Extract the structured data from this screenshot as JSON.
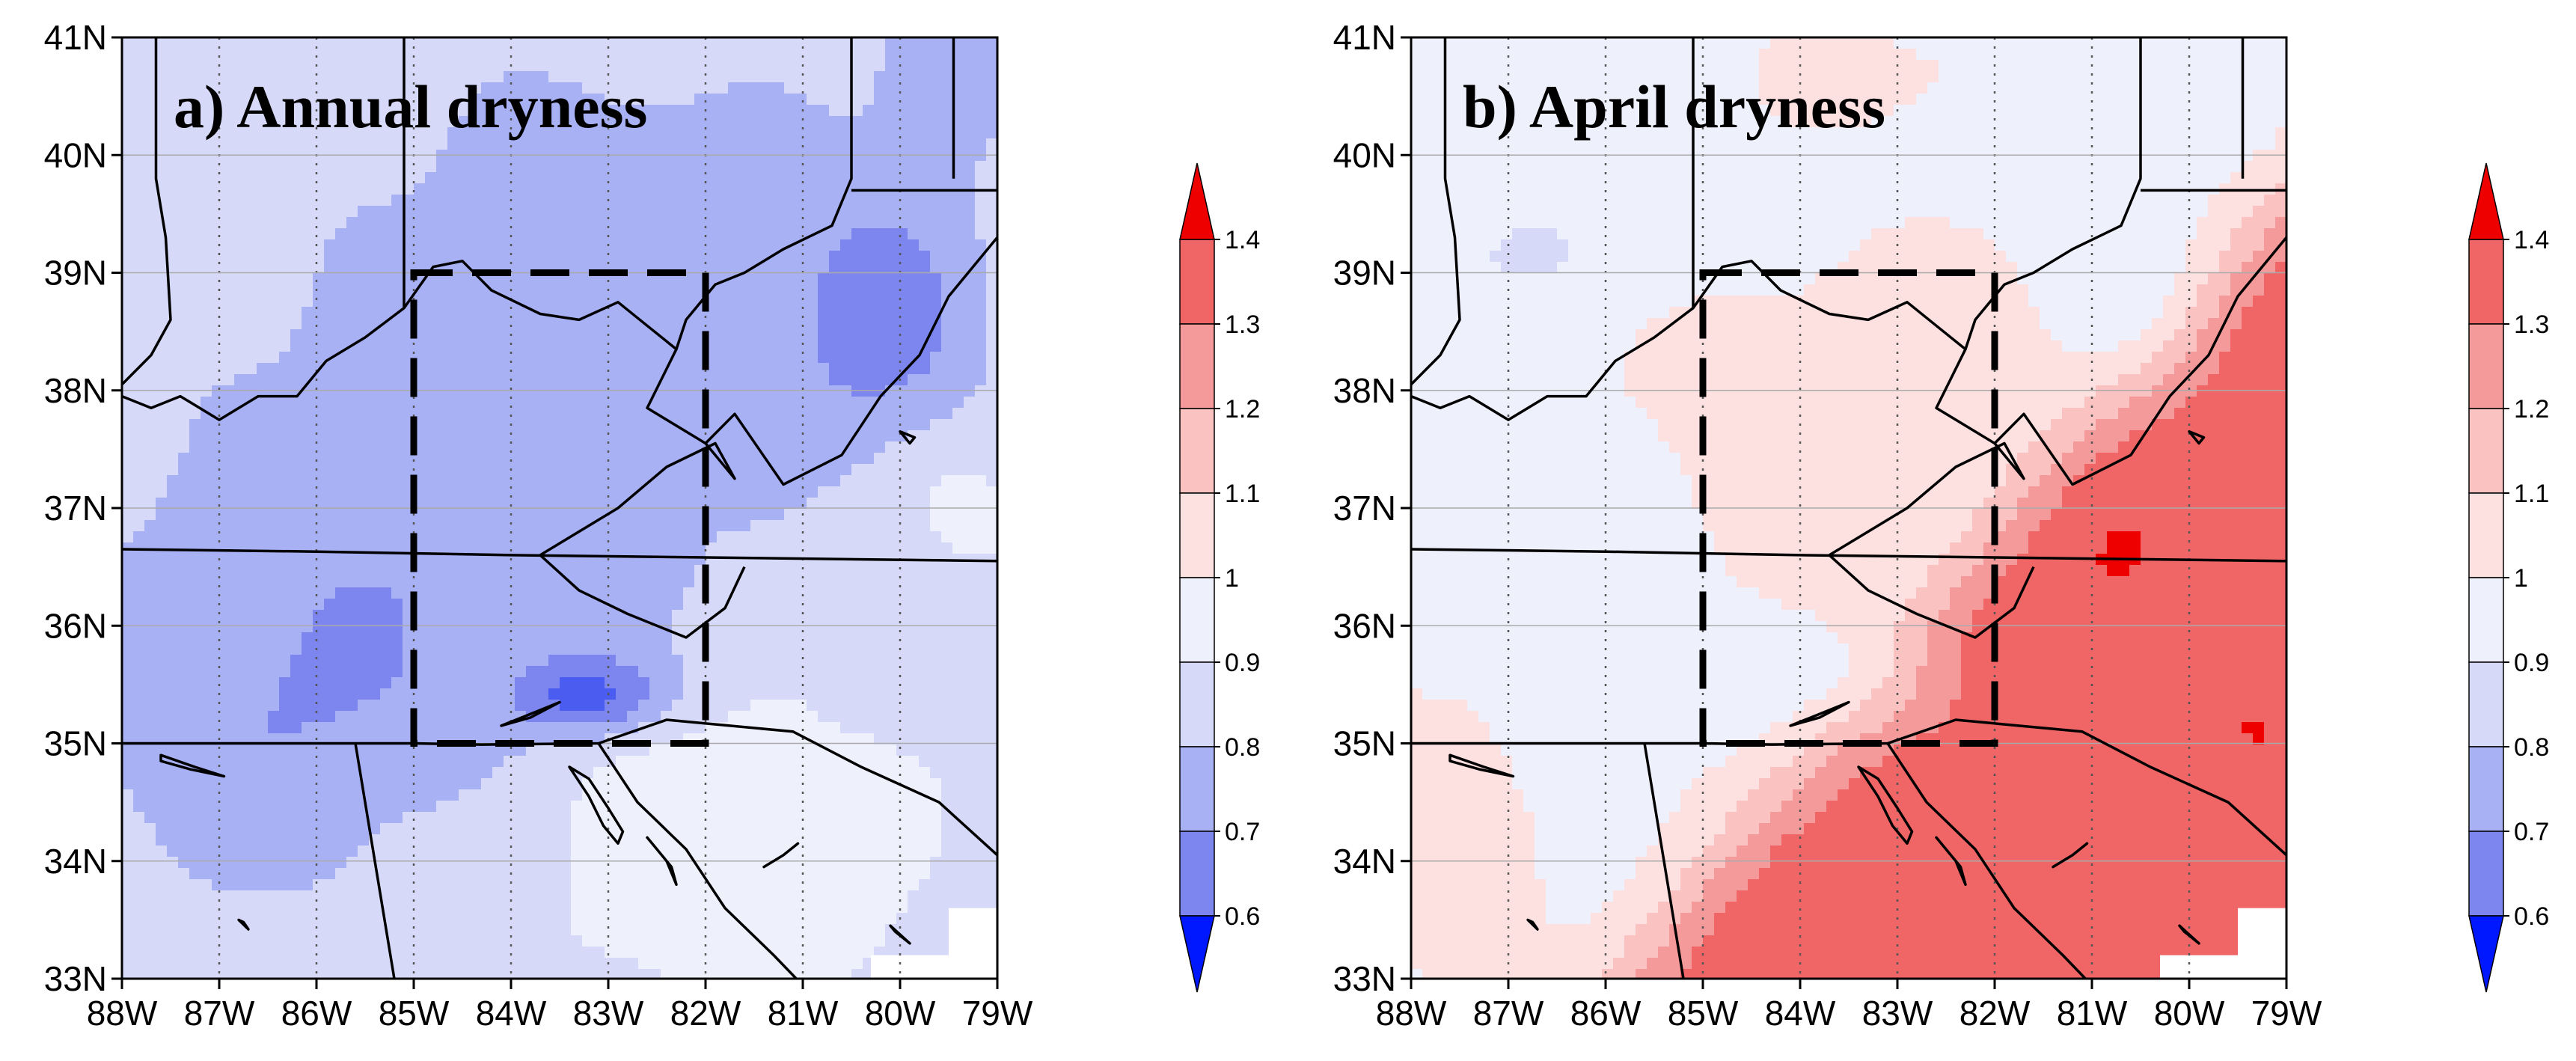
{
  "panels": [
    {
      "title": "a) Annual dryness",
      "mode": "annual",
      "colorbar": {
        "min": 0.6,
        "max": 1.4,
        "labels": [
          "1.4",
          "1.3",
          "1.2",
          "1.1",
          "1",
          "0.9",
          "0.8",
          "0.7",
          "0.6"
        ]
      }
    },
    {
      "title": "b) April dryness",
      "mode": "april",
      "colorbar": {
        "min": 0.6,
        "max": 1.4,
        "labels": [
          "1.4",
          "1.3",
          "1.2",
          "1.1",
          "1",
          "0.9",
          "0.8",
          "0.7",
          "0.6"
        ]
      }
    }
  ],
  "map": {
    "lat_labels": [
      "41N",
      "40N",
      "39N",
      "38N",
      "37N",
      "36N",
      "35N",
      "34N",
      "33N"
    ],
    "lon_labels": [
      "88W",
      "87W",
      "86W",
      "85W",
      "84W",
      "83W",
      "82W",
      "81W",
      "80W",
      "79W"
    ],
    "lat_range": [
      33,
      41
    ],
    "lon_range": [
      -88,
      -79
    ],
    "study_box": {
      "lon": [
        -85,
        -82
      ],
      "lat": [
        35,
        39
      ]
    }
  },
  "colors": {
    "levels": [
      "#0018ff",
      "#4b5cf0",
      "#7c86ee",
      "#a9b1f5",
      "#d6daf8",
      "#eef0fc",
      "#fde0e0",
      "#fbc2c2",
      "#f59a9a",
      "#f06565",
      "#ee0000"
    ],
    "boundary": "#000000"
  }
}
